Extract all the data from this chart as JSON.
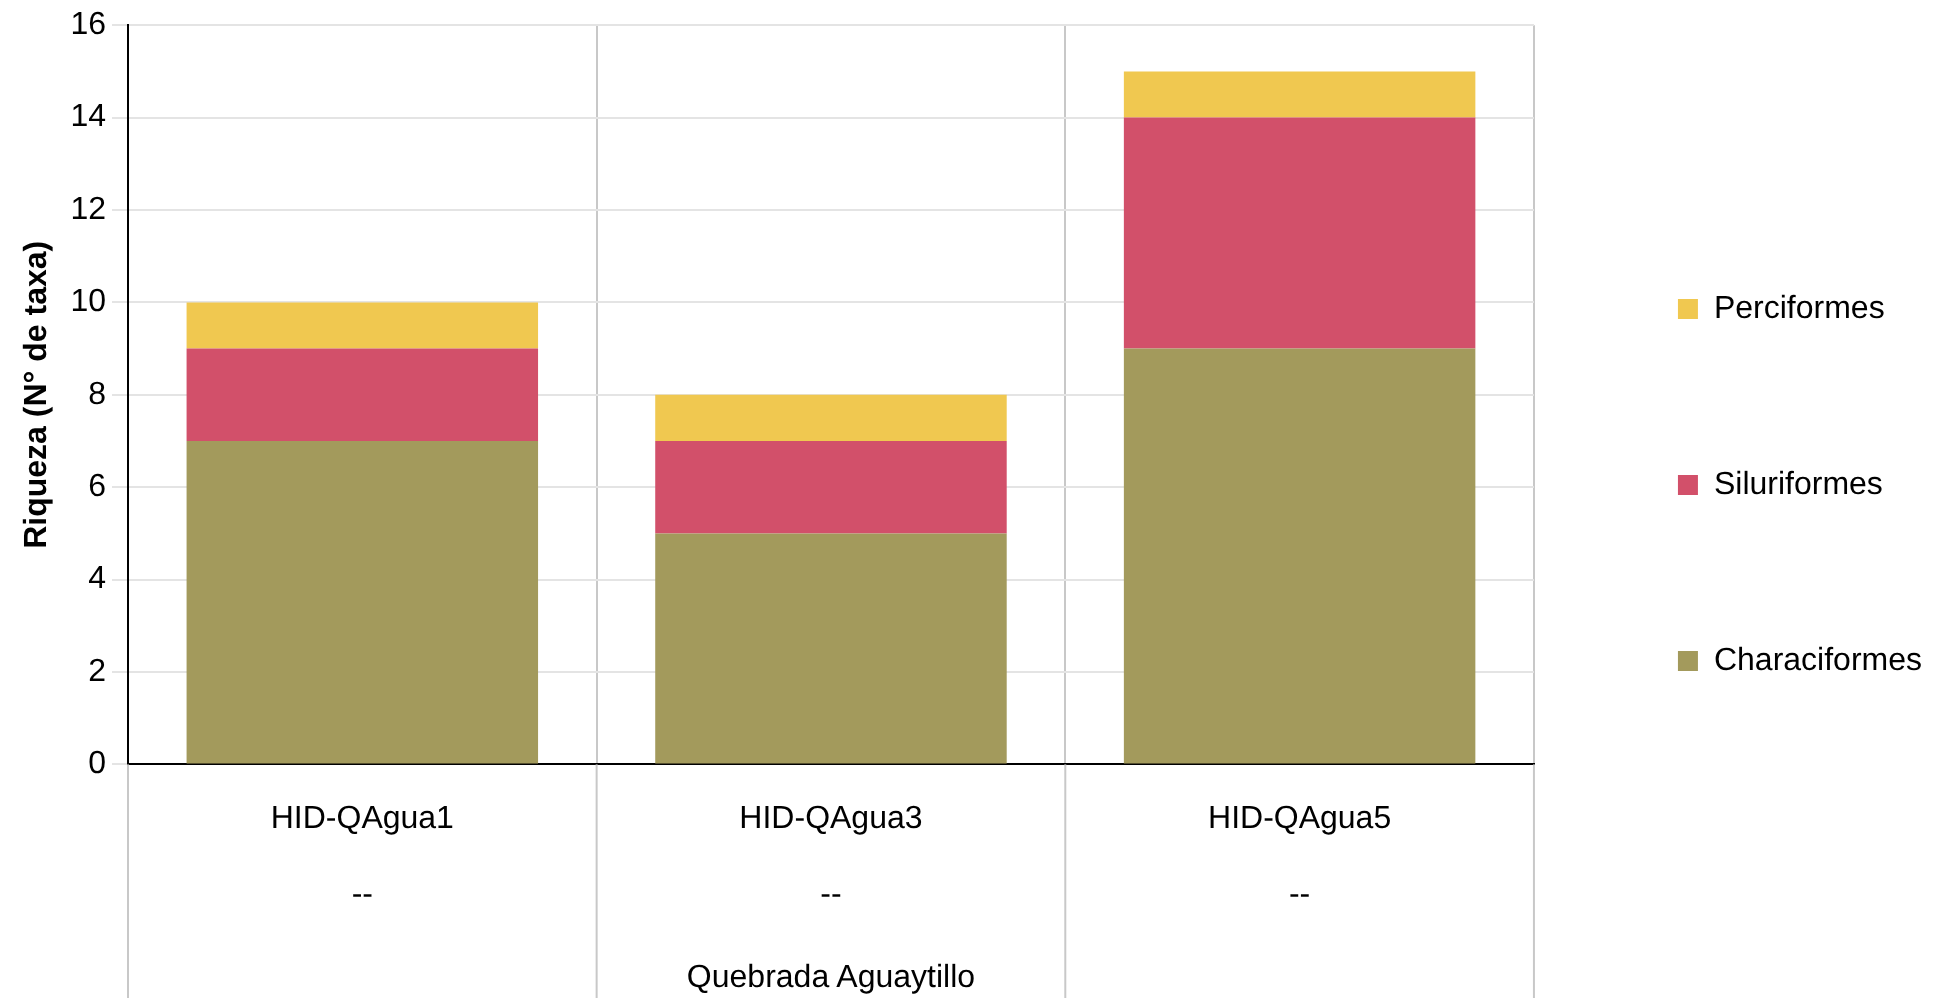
{
  "chart_data": {
    "type": "bar",
    "stacked": true,
    "ylabel": "Riqueza (N° de taxa)",
    "annotations": [
      "Quebrada Aguaytillo"
    ],
    "categories": [
      "HID-QAgua1\n--",
      "HID-QAgua3\n--",
      "HID-QAgua5\n--"
    ],
    "series": [
      {
        "name": "Characiformes",
        "color": "#a39a5c",
        "values": [
          7,
          5,
          9
        ]
      },
      {
        "name": "Siluriformes",
        "color": "#d2506a",
        "values": [
          2,
          2,
          5
        ]
      },
      {
        "name": "Perciformes",
        "color": "#f0c850",
        "values": [
          1,
          1,
          1
        ]
      }
    ],
    "ylim": [
      0,
      16
    ],
    "yticks": [
      0,
      2,
      4,
      6,
      8,
      10,
      12,
      14,
      16
    ],
    "grid": true,
    "legend": "right"
  }
}
